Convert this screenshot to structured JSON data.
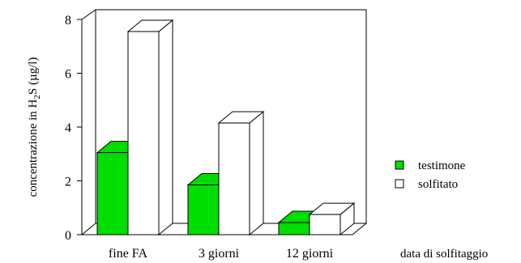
{
  "chart_data": {
    "type": "bar",
    "title": "",
    "categories": [
      "fine FA",
      "3 giorni",
      "12 giorni"
    ],
    "series": [
      {
        "name": "testimone",
        "values": [
          3.05,
          1.85,
          0.45
        ]
      },
      {
        "name": "solfitato",
        "values": [
          7.55,
          4.15,
          0.75
        ]
      }
    ],
    "xlabel": "data di solfitaggio",
    "ylabel_parts": [
      "concentrazione in H",
      "2",
      "S (µg/l)"
    ],
    "ylim": [
      0,
      8
    ],
    "yticks": [
      "0",
      "2",
      "4",
      "6",
      "8"
    ],
    "grid": false,
    "legend_position": "right",
    "colors": {
      "testimone": "#00dd00",
      "solfitato": "#ffffff",
      "stroke": "#000000"
    }
  }
}
